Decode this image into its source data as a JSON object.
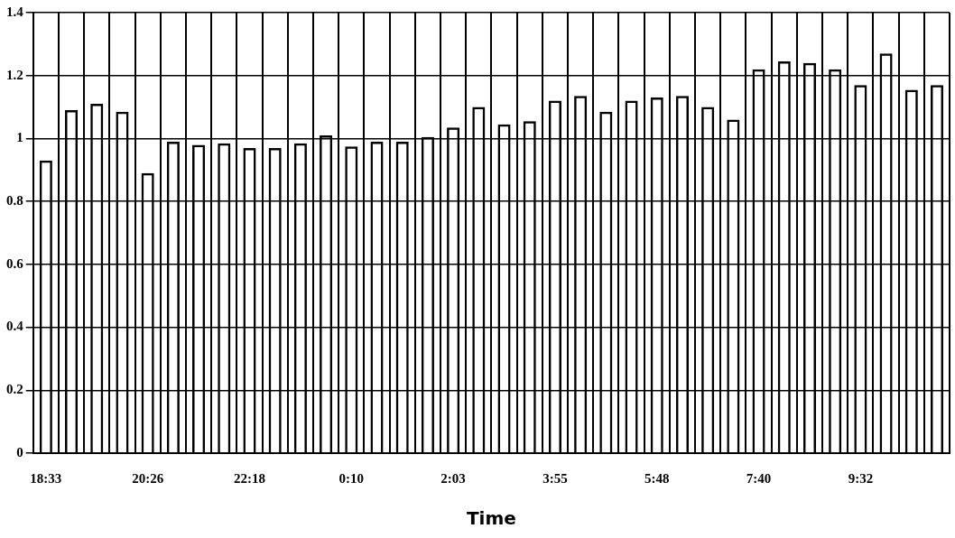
{
  "chart_data": {
    "type": "bar",
    "xlabel": "Time",
    "categories": [
      "18:33",
      null,
      null,
      null,
      "20:26",
      null,
      null,
      null,
      "22:18",
      null,
      null,
      null,
      "0:10",
      null,
      null,
      null,
      "2:03",
      null,
      null,
      null,
      "3:55",
      null,
      null,
      null,
      "5:48",
      null,
      null,
      null,
      "7:40",
      null,
      null,
      null,
      "9:32",
      null,
      null,
      null
    ],
    "values": [
      0.93,
      1.09,
      1.11,
      1.085,
      0.89,
      0.99,
      0.98,
      0.985,
      0.97,
      0.97,
      0.985,
      1.01,
      0.975,
      0.99,
      0.99,
      1.005,
      1.035,
      1.1,
      1.045,
      1.055,
      1.12,
      1.135,
      1.085,
      1.12,
      1.13,
      1.135,
      1.1,
      1.06,
      1.22,
      1.245,
      1.24,
      1.22,
      1.17,
      1.27,
      1.155,
      1.17
    ],
    "color": "#000000",
    "ylim": [
      0,
      1.4
    ],
    "yticks": [
      0,
      0.2,
      0.4,
      0.6,
      0.8,
      1,
      1.2,
      1.4
    ],
    "grid": true
  }
}
